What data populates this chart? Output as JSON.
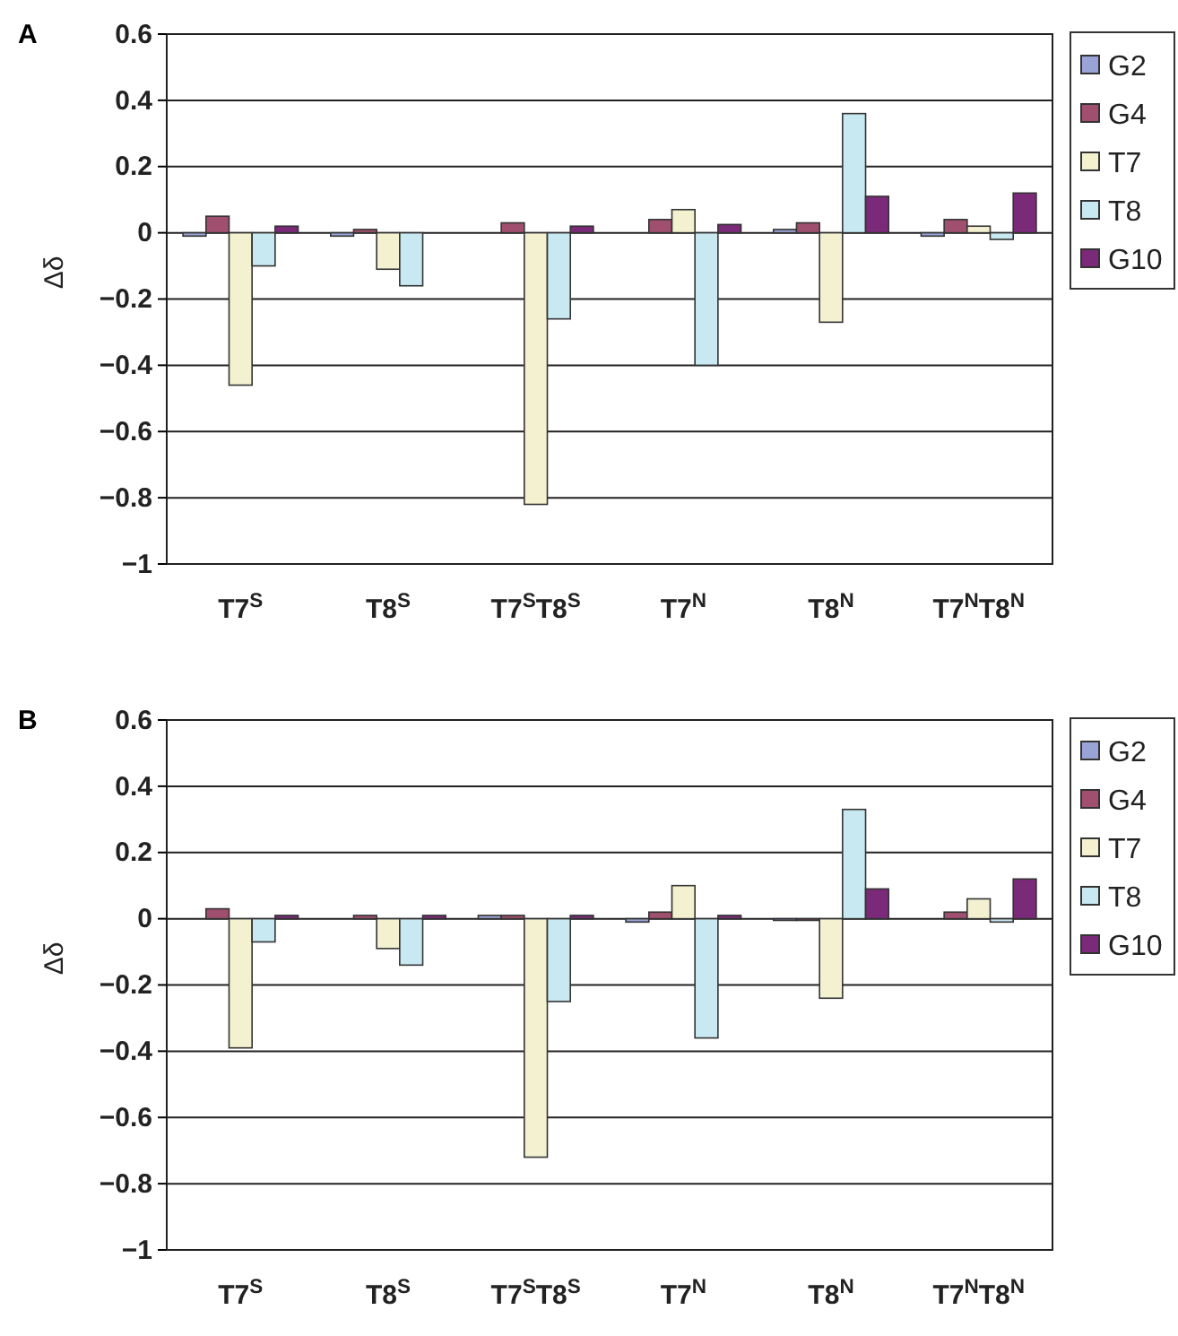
{
  "chart_data": [
    {
      "type": "bar",
      "title": "A",
      "ylabel": "Δδ",
      "categories": [
        "T7$^{S}$",
        "T8$^{S}$",
        "T7$^{S}$T8$^{S}$",
        "T7$^{N}$",
        "T8$^{N}$",
        "T7$^{N}$T8$^{N}$"
      ],
      "series": [
        {
          "name": "G2",
          "color": "#9aa3d6",
          "values": [
            -0.01,
            -0.01,
            null,
            null,
            0.01,
            -0.01
          ]
        },
        {
          "name": "G4",
          "color": "#a0506e",
          "values": [
            0.05,
            0.01,
            0.03,
            0.04,
            0.03,
            0.04
          ]
        },
        {
          "name": "T7",
          "color": "#f3f1d0",
          "values": [
            -0.46,
            -0.11,
            -0.82,
            0.07,
            -0.27,
            0.02
          ]
        },
        {
          "name": "T8",
          "color": "#c8e8f2",
          "values": [
            -0.1,
            -0.16,
            -0.26,
            -0.4,
            0.36,
            -0.02
          ]
        },
        {
          "name": "G10",
          "color": "#7a2a78",
          "values": [
            0.02,
            null,
            0.02,
            0.025,
            0.11,
            0.12
          ]
        }
      ],
      "ylim": [
        -1,
        0.6
      ],
      "yticks": [
        0.6,
        0.4,
        0.2,
        0,
        -0.2,
        -0.4,
        -0.6,
        -0.8,
        -1
      ],
      "grid": "y",
      "legend": "top right"
    },
    {
      "type": "bar",
      "title": "B",
      "ylabel": "Δδ",
      "categories": [
        "T7$^{S}$",
        "T8$^{S}$",
        "T7$^{S}$T8$^{S}$",
        "T7$^{N}$",
        "T8$^{N}$",
        "T7$^{N}$T8$^{N}$"
      ],
      "series": [
        {
          "name": "G2",
          "color": "#9aa3d6",
          "values": [
            null,
            null,
            0.01,
            -0.01,
            -0.005,
            null
          ]
        },
        {
          "name": "G4",
          "color": "#a0506e",
          "values": [
            0.03,
            0.01,
            0.01,
            0.02,
            -0.005,
            0.02
          ]
        },
        {
          "name": "T7",
          "color": "#f3f1d0",
          "values": [
            -0.39,
            -0.09,
            -0.72,
            0.1,
            -0.24,
            0.06
          ]
        },
        {
          "name": "T8",
          "color": "#c8e8f2",
          "values": [
            -0.07,
            -0.14,
            -0.25,
            -0.36,
            0.33,
            -0.01
          ]
        },
        {
          "name": "G10",
          "color": "#7a2a78",
          "values": [
            0.01,
            0.01,
            0.01,
            0.01,
            0.09,
            0.12
          ]
        }
      ],
      "ylim": [
        -1,
        0.6
      ],
      "yticks": [
        0.6,
        0.4,
        0.2,
        0,
        -0.2,
        -0.4,
        -0.6,
        -0.8,
        -1
      ],
      "grid": "y",
      "legend": "top right"
    }
  ]
}
